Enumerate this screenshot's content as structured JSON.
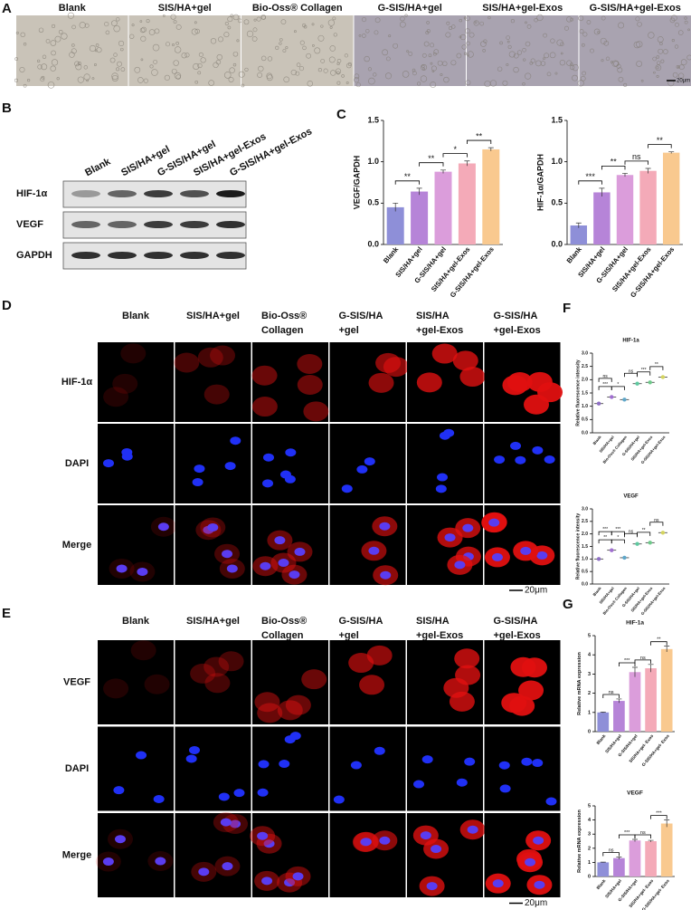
{
  "panel_letters": [
    "A",
    "B",
    "C",
    "D",
    "E",
    "F",
    "G"
  ],
  "panel_a": {
    "groups": [
      "Blank",
      "SIS/HA+gel",
      "Bio-Oss® Collagen",
      "G-SIS/HA+gel",
      "SIS/HA+gel-Exos",
      "G-SIS/HA+gel-Exos"
    ],
    "scale_bar": "20μm"
  },
  "panel_b": {
    "lanes": [
      "Blank",
      "SIS/HA+gel",
      "G-SIS/HA+gel",
      "SIS/HA+gel-Exos",
      "G-SIS/HA+gel-Exos"
    ],
    "rows": [
      "HIF-1α",
      "VEGF",
      "GAPDH"
    ]
  },
  "panel_d": {
    "columns": [
      [
        "Blank"
      ],
      [
        "SIS/HA+gel"
      ],
      [
        "Bio-Oss®",
        "Collagen"
      ],
      [
        "G-SIS/HA",
        "+gel"
      ],
      [
        "SIS/HA",
        "+gel-Exos"
      ],
      [
        "G-SIS/HA",
        "+gel-Exos"
      ]
    ],
    "rows": [
      "HIF-1α",
      "DAPI",
      "Merge"
    ],
    "scale_bar": "20μm"
  },
  "panel_e": {
    "columns": [
      [
        "Blank"
      ],
      [
        "SIS/HA+gel"
      ],
      [
        "Bio-Oss®",
        "Collagen"
      ],
      [
        "G-SIS/HA",
        "+gel"
      ],
      [
        "SIS/HA",
        "+gel-Exos"
      ],
      [
        "G-SIS/HA",
        "+gel-Exos"
      ]
    ],
    "rows": [
      "VEGF",
      "DAPI",
      "Merge"
    ],
    "scale_bar": "20μm"
  },
  "chart_data": [
    {
      "type": "bar",
      "ylabel": "VEGF/GAPDH",
      "categories": [
        "Blank",
        "SIS/HA+gel",
        "G-SIS/HA+gel",
        "SIS/HA+gel-Exos",
        "G-SIS/HA+gel-Exos"
      ],
      "values": [
        0.45,
        0.64,
        0.88,
        0.98,
        1.15
      ],
      "errors": [
        0.05,
        0.04,
        0.02,
        0.03,
        0.02
      ],
      "colors": [
        "#8e8fd8",
        "#b684d8",
        "#db9ddb",
        "#f4aab8",
        "#f9c98f"
      ],
      "ylim": [
        0,
        1.5
      ],
      "yticks": [
        {
          "value": 0,
          "label": "0.0"
        },
        {
          "value": 0.5,
          "label": "0.5"
        },
        {
          "value": 1,
          "label": "1.0"
        },
        {
          "value": 1.5,
          "label": "1.5"
        }
      ],
      "annotations": [
        "**",
        "**",
        "*",
        "**"
      ]
    },
    {
      "type": "bar",
      "ylabel": "HIF-1α/GAPDH",
      "categories": [
        "Blank",
        "SIS/HA+gel",
        "G-SIS/HA+gel",
        "SIS/HA+gel-Exos",
        "G-SIS/HA+gel-Exos"
      ],
      "values": [
        0.23,
        0.63,
        0.84,
        0.89,
        1.11
      ],
      "errors": [
        0.03,
        0.05,
        0.02,
        0.03,
        0.01
      ],
      "colors": [
        "#8e8fd8",
        "#b684d8",
        "#db9ddb",
        "#f4aab8",
        "#f9c98f"
      ],
      "ylim": [
        0,
        1.5
      ],
      "yticks": [
        {
          "value": 0,
          "label": "0.0"
        },
        {
          "value": 0.5,
          "label": "0.5"
        },
        {
          "value": 1,
          "label": "1.0"
        },
        {
          "value": 1.5,
          "label": "1.5"
        }
      ],
      "annotations": [
        "***",
        "**",
        "ns",
        "**"
      ]
    },
    {
      "type": "dot",
      "title": "HIF-1a",
      "ylabel": "Relative fluorescence intensity",
      "categories": [
        "Blank",
        "SIS/HA+gel",
        "Bio-Oss® Collagen",
        "G-SIS/HA+gel",
        "SIS/HA+gel-Exos",
        "G-SIS/HA+gel-Exos"
      ],
      "values": [
        1.1,
        1.35,
        1.25,
        1.85,
        1.9,
        2.1
      ],
      "colors": [
        "#8e6fc4",
        "#a06fd0",
        "#5fa7c9",
        "#5fc9a0",
        "#6fc98a",
        "#d4d45f"
      ],
      "ylim": [
        0,
        3
      ],
      "yticks": [
        {
          "value": 0,
          "label": "0.0"
        },
        {
          "value": 0.5,
          "label": "0.5"
        },
        {
          "value": 1,
          "label": "1.0"
        },
        {
          "value": 1.5,
          "label": "1.5"
        },
        {
          "value": 2,
          "label": "2.0"
        },
        {
          "value": 2.5,
          "label": "2.5"
        },
        {
          "value": 3,
          "label": "3.0"
        }
      ],
      "annotations": [
        "***",
        "*",
        "ns",
        "***",
        "**",
        "ns"
      ]
    },
    {
      "type": "dot",
      "title": "VEGF",
      "ylabel": "Relative fluorescence intensity",
      "categories": [
        "Blank",
        "SIS/HA+gel",
        "Bio-Oss® Collagen",
        "G-SIS/HA+gel",
        "SIS/HA+gel-Exos",
        "G-SIS/HA+gel-Exos"
      ],
      "values": [
        1.0,
        1.35,
        1.05,
        1.6,
        1.65,
        2.05
      ],
      "colors": [
        "#8e6fc4",
        "#a06fd0",
        "#5fa7c9",
        "#5fc9a0",
        "#6fc98a",
        "#d4d45f"
      ],
      "ylim": [
        0,
        3
      ],
      "yticks": [
        {
          "value": 0,
          "label": "0.0"
        },
        {
          "value": 0.5,
          "label": "0.5"
        },
        {
          "value": 1,
          "label": "1.0"
        },
        {
          "value": 1.5,
          "label": "1.5"
        },
        {
          "value": 2,
          "label": "2.0"
        },
        {
          "value": 2.5,
          "label": "2.5"
        },
        {
          "value": 3,
          "label": "3.0"
        }
      ],
      "annotations": [
        "**",
        "*",
        "ns",
        "**",
        "ns",
        "***",
        "***"
      ]
    },
    {
      "type": "bar",
      "title": "HIF-1a",
      "ylabel": "Relative mRNA expression",
      "categories": [
        "Blank",
        "SIS/HA+gel",
        "G-SIS/HA+gel",
        "SIS/HA+gel- Exos",
        "G-SIS/HA+gel- Exos"
      ],
      "values": [
        1.0,
        1.6,
        3.1,
        3.3,
        4.3
      ],
      "errors": [
        0.02,
        0.1,
        0.25,
        0.2,
        0.15
      ],
      "colors": [
        "#8e8fd8",
        "#b684d8",
        "#db9ddb",
        "#f4aab8",
        "#f9c98f"
      ],
      "ylim": [
        0,
        5
      ],
      "yticks": [
        0,
        1,
        2,
        3,
        4,
        5
      ],
      "annotations": [
        "ns",
        "***",
        "ns",
        "**"
      ]
    },
    {
      "type": "bar",
      "title": "VEGF",
      "ylabel": "Relative mRNA expression",
      "categories": [
        "Blank",
        "SIS/HA+gel",
        "G-SIS/HA+gel",
        "SIS/HA+gel- Exos",
        "G-SIS/HA+gel- Exos"
      ],
      "values": [
        1.0,
        1.3,
        2.55,
        2.5,
        3.75
      ],
      "errors": [
        0.02,
        0.08,
        0.08,
        0.06,
        0.25
      ],
      "colors": [
        "#8e8fd8",
        "#b684d8",
        "#db9ddb",
        "#f4aab8",
        "#f9c98f"
      ],
      "ylim": [
        0,
        5
      ],
      "yticks": [
        0,
        1,
        2,
        3,
        4,
        5
      ],
      "annotations": [
        "ns",
        "***",
        "ns",
        "***"
      ]
    }
  ]
}
